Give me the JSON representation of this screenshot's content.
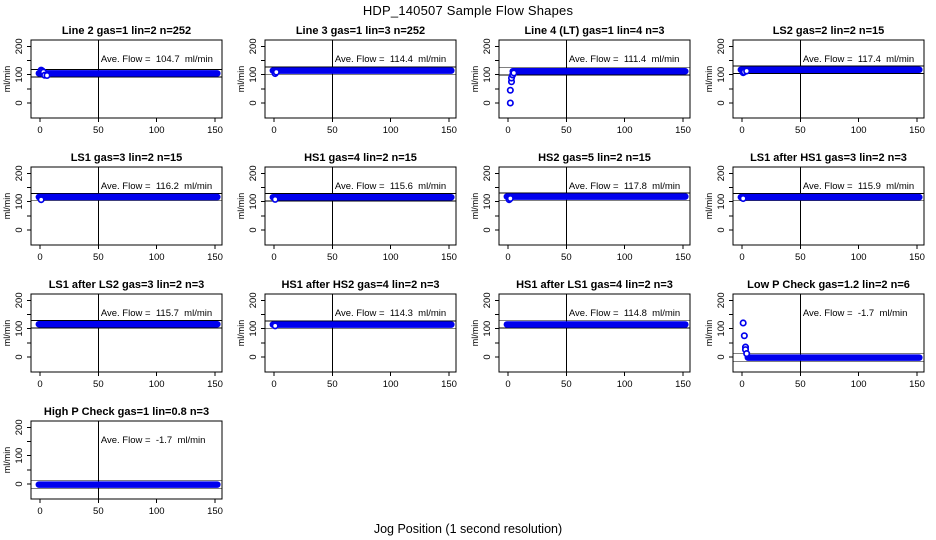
{
  "figure": {
    "title": "HDP_140507  Sample Flow Shapes",
    "xlabel": "Jog Position (1 second resolution)"
  },
  "style": {
    "point_color": "#0000ee",
    "axis_color": "#000000",
    "background": "#ffffff"
  },
  "axes": {
    "ylabel": "ml/min",
    "x_ticks": [
      0,
      50,
      100,
      150
    ],
    "y_ticks_labeled": [
      0,
      100,
      200
    ],
    "y_ticks_minor": [
      50,
      150
    ],
    "xlim": [
      -8,
      156
    ],
    "ylim": [
      -53,
      220
    ],
    "vline_x": 50,
    "hline_offset": 13
  },
  "chart_data": [
    {
      "type": "scatter",
      "title": "Line 2 gas=1 lin=2 n=252",
      "ave_flow": 104.7,
      "annotation": "Ave. Flow =  104.7  ml/min",
      "flat_band": {
        "x_start": -1,
        "x_end": 152,
        "y": 104.7
      },
      "transient_points": [
        [
          1,
          116
        ],
        [
          2,
          113
        ],
        [
          3,
          109
        ],
        [
          4,
          98
        ],
        [
          6,
          97
        ]
      ]
    },
    {
      "type": "scatter",
      "title": "Line 3 gas=1 lin=3 n=252",
      "ave_flow": 114.4,
      "annotation": "Ave. Flow =  114.4  ml/min",
      "flat_band": {
        "x_start": -1,
        "x_end": 152,
        "y": 114.4
      },
      "transient_points": [
        [
          1,
          104
        ],
        [
          2,
          109
        ]
      ]
    },
    {
      "type": "scatter",
      "title": "Line 4 (LT) gas=1 lin=4 n=3",
      "ave_flow": 111.4,
      "annotation": "Ave. Flow =  111.4  ml/min",
      "flat_band": {
        "x_start": 4,
        "x_end": 152,
        "y": 112
      },
      "transient_points": [
        [
          2,
          0
        ],
        [
          2,
          45
        ],
        [
          3,
          75
        ],
        [
          3,
          88
        ],
        [
          4,
          99
        ],
        [
          5,
          106
        ]
      ]
    },
    {
      "type": "scatter",
      "title": "LS2 gas=2 lin=2 n=15",
      "ave_flow": 117.4,
      "annotation": "Ave. Flow =  117.4  ml/min",
      "flat_band": {
        "x_start": -1,
        "x_end": 152,
        "y": 117.5
      },
      "transient_points": [
        [
          1,
          107
        ],
        [
          2,
          110
        ],
        [
          4,
          113
        ]
      ]
    },
    {
      "type": "scatter",
      "title": "LS1 gas=3 lin=2 n=15",
      "ave_flow": 116.2,
      "annotation": "Ave. Flow =  116.2  ml/min",
      "flat_band": {
        "x_start": -1,
        "x_end": 152,
        "y": 116.2
      },
      "transient_points": [
        [
          1,
          107
        ]
      ]
    },
    {
      "type": "scatter",
      "title": "HS1 gas=4 lin=2 n=15",
      "ave_flow": 115.6,
      "annotation": "Ave. Flow =  115.6  ml/min",
      "flat_band": {
        "x_start": -1,
        "x_end": 152,
        "y": 115.6
      },
      "transient_points": [
        [
          1,
          108
        ]
      ]
    },
    {
      "type": "scatter",
      "title": "HS2 gas=5 lin=2 n=15",
      "ave_flow": 117.8,
      "annotation": "Ave. Flow =  117.8  ml/min",
      "flat_band": {
        "x_start": -1,
        "x_end": 152,
        "y": 117.8
      },
      "transient_points": [
        [
          1,
          107
        ],
        [
          2,
          111
        ]
      ]
    },
    {
      "type": "scatter",
      "title": "LS1 after HS1 gas=3 lin=2 n=3",
      "ave_flow": 115.9,
      "annotation": "Ave. Flow =  115.9  ml/min",
      "flat_band": {
        "x_start": -1,
        "x_end": 152,
        "y": 115.9
      },
      "transient_points": [
        [
          1,
          111
        ]
      ]
    },
    {
      "type": "scatter",
      "title": "LS1 after LS2 gas=3 lin=2 n=3",
      "ave_flow": 115.7,
      "annotation": "Ave. Flow =  115.7  ml/min",
      "flat_band": {
        "x_start": -1,
        "x_end": 152,
        "y": 115.7
      },
      "transient_points": []
    },
    {
      "type": "scatter",
      "title": "HS1 after HS2 gas=4 lin=2 n=3",
      "ave_flow": 114.3,
      "annotation": "Ave. Flow =  114.3  ml/min",
      "flat_band": {
        "x_start": -1,
        "x_end": 152,
        "y": 114.3
      },
      "transient_points": [
        [
          1,
          110
        ]
      ]
    },
    {
      "type": "scatter",
      "title": "HS1 after LS1 gas=4 lin=2 n=3",
      "ave_flow": 114.8,
      "annotation": "Ave. Flow =  114.8  ml/min",
      "flat_band": {
        "x_start": -1,
        "x_end": 152,
        "y": 114.8
      },
      "transient_points": []
    },
    {
      "type": "scatter",
      "title": "Low P Check gas=1.2 lin=2 n=6",
      "ave_flow": -1.7,
      "annotation": "Ave. Flow =  -1.7  ml/min",
      "flat_band": {
        "x_start": 5,
        "x_end": 152,
        "y": -2
      },
      "transient_points": [
        [
          1,
          120
        ],
        [
          2,
          75
        ],
        [
          3,
          35
        ],
        [
          3,
          26
        ],
        [
          4,
          12
        ]
      ]
    },
    {
      "type": "scatter",
      "title": "High P Check gas=1 lin=0.8 n=3",
      "ave_flow": -1.7,
      "annotation": "Ave. Flow =  -1.7  ml/min",
      "flat_band": {
        "x_start": -1,
        "x_end": 152,
        "y": -2
      },
      "transient_points": []
    }
  ]
}
